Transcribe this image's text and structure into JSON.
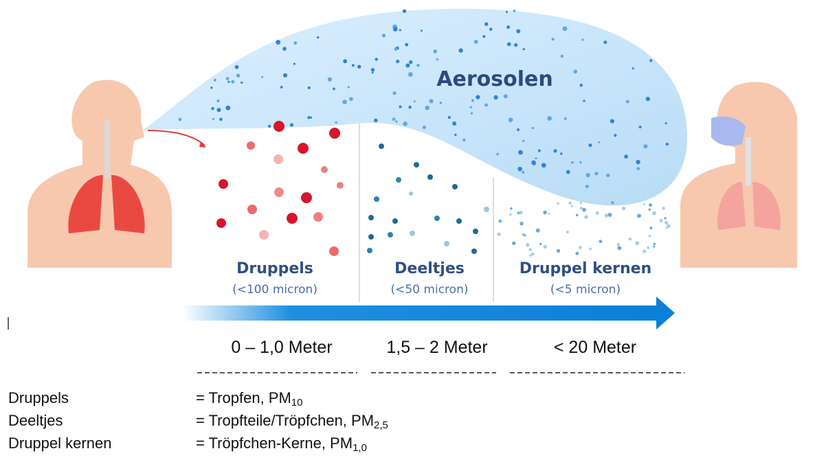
{
  "cloud_label": "Aerosolen",
  "categories": [
    {
      "name": "Druppels",
      "size": "(<100 micron)",
      "distance": "0 – 1,0 Meter"
    },
    {
      "name": "Deeltjes",
      "size": "(<50 micron)",
      "distance": "1,5 – 2 Meter"
    },
    {
      "name": "Druppel kernen",
      "size": "(<5 micron)",
      "distance": "< 20 Meter"
    }
  ],
  "definitions": [
    {
      "term": "Druppels",
      "text": "= Tropfen, PM",
      "sub": "10"
    },
    {
      "term": "Deeltjes",
      "text": "= Tropfteile/Tröpfchen, PM",
      "sub": "2,5"
    },
    {
      "term": "Druppel kernen",
      "text": "= Tröpfchen-Kerne, PM",
      "sub": "1,0"
    }
  ]
}
